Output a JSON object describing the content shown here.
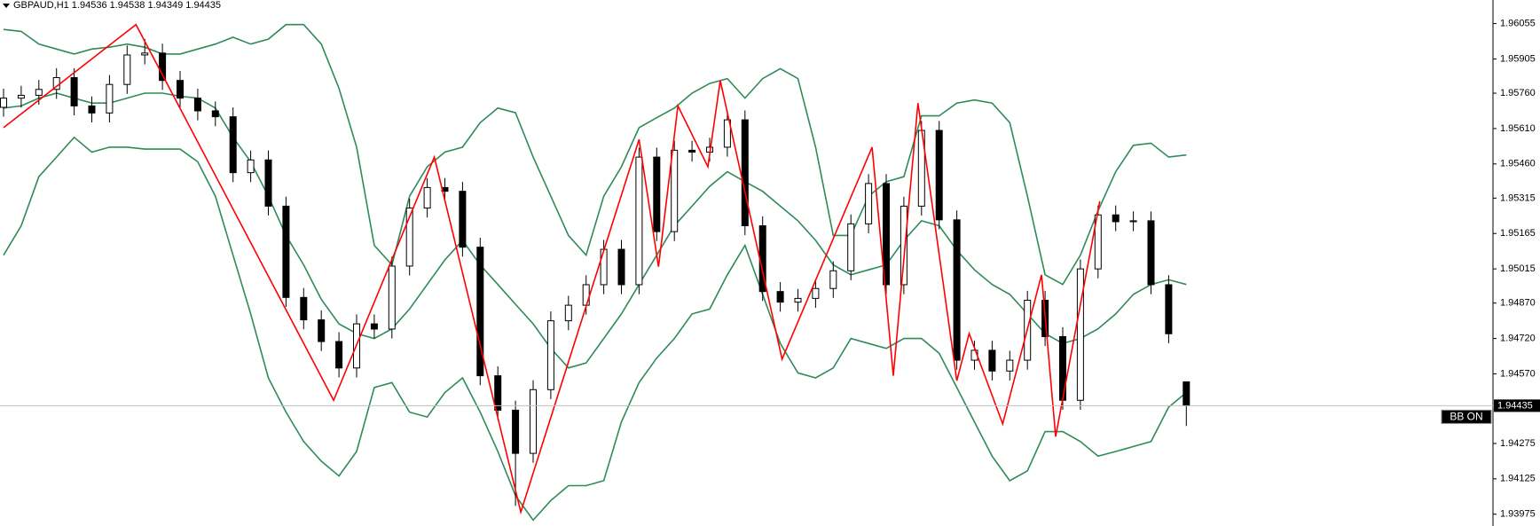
{
  "chart_data": {
    "type": "candlestick",
    "title": "GBPAUD,H1  1.94536 1.94538 1.94349 1.94435",
    "ylim": [
      1.93925,
      1.96155
    ],
    "yticks": [
      1.96055,
      1.95905,
      {
        "value": 1.9576,
        "label": "1.95760"
      },
      {
        "value": 1.9561,
        "label": "1.95610"
      },
      {
        "value": 1.9546,
        "label": "1.95460"
      },
      1.95315,
      1.95165,
      1.95015,
      {
        "value": 1.9487,
        "label": "1.94870"
      },
      {
        "value": 1.9472,
        "label": "1.94720"
      },
      {
        "value": 1.9457,
        "label": "1.94570"
      },
      1.94275,
      1.94125,
      1.93975
    ],
    "grid": false,
    "up_color": "#ffffff",
    "down_color": "#000000",
    "open": [
      1.957,
      1.95739,
      1.95751,
      1.95776,
      1.95826,
      1.95706,
      1.95676,
      1.95797,
      1.95922,
      1.9593,
      1.95814,
      1.95739,
      1.95685,
      1.9566,
      1.95423,
      1.95477,
      1.95281,
      1.94894,
      1.94799,
      1.94707,
      1.94595,
      1.94782,
      1.9476,
      1.95027,
      1.95273,
      1.9536,
      1.95344,
      1.95107,
      1.94562,
      1.94416,
      1.94233,
      1.94503,
      1.94795,
      1.94861,
      1.94948,
      1.95098,
      1.94948,
      1.95489,
      1.95173,
      1.95518,
      1.9551,
      1.95531,
      1.95647,
      1.95198,
      1.94919,
      1.94874,
      1.9489,
      1.94932,
      1.95007,
      1.95206,
      1.95377,
      1.94948,
      1.95281,
      1.95602,
      1.95223,
      1.94628,
      1.9467,
      1.94582,
      1.94628,
      1.94882,
      1.94728,
      1.94458,
      1.95015,
      1.95244,
      1.95215,
      1.95219,
      1.94948,
      1.94536
    ],
    "high": [
      1.95779,
      1.95791,
      1.95816,
      1.95866,
      1.95866,
      1.95746,
      1.95837,
      1.95962,
      1.9599,
      1.9597,
      1.95854,
      1.95779,
      1.95725,
      1.957,
      1.95517,
      1.95517,
      1.95321,
      1.94934,
      1.94839,
      1.94747,
      1.94822,
      1.94822,
      1.95067,
      1.95313,
      1.954,
      1.954,
      1.95384,
      1.95147,
      1.94602,
      1.94456,
      1.94543,
      1.94835,
      1.94901,
      1.94988,
      1.95138,
      1.95138,
      1.95529,
      1.95529,
      1.95558,
      1.95558,
      1.95571,
      1.95687,
      1.95687,
      1.95238,
      1.94959,
      1.9493,
      1.94972,
      1.95047,
      1.95246,
      1.95417,
      1.95417,
      1.95321,
      1.95642,
      1.95642,
      1.95263,
      1.9471,
      1.9471,
      1.94668,
      1.94922,
      1.94922,
      1.94768,
      1.95055,
      1.95284,
      1.95284,
      1.95259,
      1.95259,
      1.94988,
      1.94538
    ],
    "low": [
      1.9566,
      1.95699,
      1.95711,
      1.95736,
      1.95666,
      1.95636,
      1.95636,
      1.95757,
      1.95882,
      1.95774,
      1.95699,
      1.95645,
      1.9562,
      1.95383,
      1.95383,
      1.95241,
      1.94854,
      1.94759,
      1.94667,
      1.94555,
      1.94555,
      1.9472,
      1.9472,
      1.94987,
      1.95233,
      1.95304,
      1.95067,
      1.94522,
      1.94376,
      1.9401,
      1.94193,
      1.94463,
      1.94755,
      1.94821,
      1.94908,
      1.94908,
      1.94908,
      1.95133,
      1.95133,
      1.9547,
      1.9547,
      1.95491,
      1.95158,
      1.94879,
      1.94834,
      1.94834,
      1.9485,
      1.94892,
      1.94967,
      1.95166,
      1.94908,
      1.94908,
      1.95241,
      1.95183,
      1.94588,
      1.94588,
      1.94542,
      1.94542,
      1.94588,
      1.94688,
      1.94418,
      1.94418,
      1.94975,
      1.95175,
      1.95175,
      1.94908,
      1.947,
      1.94349
    ],
    "close": [
      1.95739,
      1.95751,
      1.95776,
      1.95826,
      1.95706,
      1.95676,
      1.95797,
      1.95922,
      1.9593,
      1.95814,
      1.95739,
      1.95685,
      1.9566,
      1.95423,
      1.95477,
      1.95281,
      1.94894,
      1.94799,
      1.94707,
      1.94595,
      1.94782,
      1.9476,
      1.95027,
      1.95273,
      1.9536,
      1.95344,
      1.95107,
      1.94562,
      1.94416,
      1.94233,
      1.94503,
      1.94795,
      1.94861,
      1.94948,
      1.95098,
      1.94948,
      1.95489,
      1.95173,
      1.95518,
      1.9551,
      1.95531,
      1.95647,
      1.95198,
      1.94919,
      1.94874,
      1.9489,
      1.94932,
      1.95007,
      1.95206,
      1.95377,
      1.94948,
      1.95281,
      1.95602,
      1.95223,
      1.94628,
      1.9467,
      1.94582,
      1.94628,
      1.94882,
      1.94728,
      1.94458,
      1.95015,
      1.95244,
      1.95215,
      1.95219,
      1.94948,
      1.9474,
      1.94435
    ],
    "series": [
      {
        "color": "#2e8b57",
        "values": [
          1.9603,
          1.96022,
          1.95968,
          1.95947,
          1.95926,
          1.95947,
          1.95955,
          1.95968,
          1.95955,
          1.95926,
          1.95926,
          1.95947,
          1.95968,
          1.95997,
          1.95968,
          1.95989,
          1.96051,
          1.96051,
          1.95968,
          1.95781,
          1.95531,
          1.95115,
          1.95032,
          1.95323,
          1.95448,
          1.9551,
          1.95531,
          1.95635,
          1.95697,
          1.95677,
          1.95489,
          1.95323,
          1.95157,
          1.95073,
          1.95323,
          1.95448,
          1.95614,
          1.95656,
          1.95697,
          1.9576,
          1.95801,
          1.95822,
          1.95739,
          1.95822,
          1.95864,
          1.95822,
          1.95531,
          1.95157,
          1.95157,
          1.95323,
          1.95385,
          1.95406,
          1.95664,
          1.95664,
          1.95718,
          1.95731,
          1.95718,
          1.95635,
          1.95323,
          1.9499,
          1.94949,
          1.95073,
          1.95261,
          1.95427,
          1.95539,
          1.95548,
          1.95489,
          1.95498
        ]
      },
      {
        "color": "#2e8b57",
        "values": [
          1.95697,
          1.95706,
          1.95739,
          1.9576,
          1.95739,
          1.95718,
          1.95718,
          1.95739,
          1.9576,
          1.9576,
          1.95747,
          1.95739,
          1.95697,
          1.95573,
          1.95469,
          1.95323,
          1.95157,
          1.95032,
          1.94886,
          1.94782,
          1.94741,
          1.9472,
          1.94761,
          1.94845,
          1.94949,
          1.95053,
          1.95136,
          1.95032,
          1.94949,
          1.94865,
          1.94782,
          1.94678,
          1.94595,
          1.94616,
          1.9472,
          1.94824,
          1.94949,
          1.95073,
          1.95198,
          1.95281,
          1.95365,
          1.95427,
          1.95385,
          1.95344,
          1.95281,
          1.95219,
          1.95136,
          1.95032,
          1.9499,
          1.95011,
          1.95032,
          1.95136,
          1.95219,
          1.95198,
          1.95094,
          1.95011,
          1.94949,
          1.94907,
          1.94824,
          1.94741,
          1.94699,
          1.9472,
          1.94761,
          1.94824,
          1.94907,
          1.94949,
          1.94969,
          1.94949
        ]
      },
      {
        "color": "#2e8b57",
        "values": [
          1.95073,
          1.95198,
          1.95406,
          1.95489,
          1.95573,
          1.9551,
          1.95531,
          1.95531,
          1.95523,
          1.95523,
          1.95523,
          1.95469,
          1.95323,
          1.95073,
          1.94824,
          1.94553,
          1.94408,
          1.94283,
          1.942,
          1.94137,
          1.94241,
          1.94512,
          1.94533,
          1.94408,
          1.94387,
          1.94491,
          1.94553,
          1.94408,
          1.94241,
          1.94054,
          1.9395,
          1.94033,
          1.94096,
          1.94096,
          1.94117,
          1.94366,
          1.94533,
          1.94637,
          1.9472,
          1.94824,
          1.94845,
          1.9499,
          1.95115,
          1.94907,
          1.94699,
          1.94574,
          1.94553,
          1.94595,
          1.9472,
          1.94699,
          1.94678,
          1.9472,
          1.9472,
          1.94657,
          1.94512,
          1.94366,
          1.94221,
          1.94117,
          1.94159,
          1.94325,
          1.94325,
          1.94283,
          1.94221,
          1.94241,
          1.94262,
          1.94283,
          1.94429,
          1.94491
        ]
      }
    ],
    "zigzag": {
      "color": "#ff0000",
      "x": [
        0,
        7.5,
        18.7,
        24.4,
        29.3,
        36,
        37.1,
        38.2,
        39.9,
        40.6,
        44.1,
        49.2,
        50.4,
        51.8,
        54,
        54.7,
        56.6,
        58.8,
        59.6,
        62.1
      ],
      "values": [
        1.95614,
        1.96051,
        1.94458,
        1.95489,
        1.93984,
        1.95564,
        1.95024,
        1.95706,
        1.95448,
        1.95814,
        1.94632,
        1.95531,
        1.94562,
        1.95718,
        1.94541,
        1.94741,
        1.94358,
        1.9499,
        1.94304,
        1.95302
      ]
    },
    "current_price": 1.94435,
    "indicator_label": "BB ON"
  }
}
